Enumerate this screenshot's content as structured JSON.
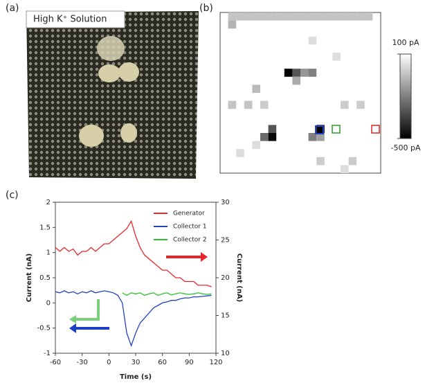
{
  "panels": [
    "(a)",
    "(b)",
    "(c)"
  ],
  "photo": {
    "label": "High K⁺ Solution"
  },
  "chart_data": [
    {
      "type": "heatmap",
      "cells": [
        [
          0,
          1,
          -40
        ],
        [
          0,
          2,
          -40
        ],
        [
          0,
          3,
          -40
        ],
        [
          0,
          4,
          -40
        ],
        [
          0,
          5,
          -40
        ],
        [
          0,
          6,
          -40
        ],
        [
          0,
          7,
          -40
        ],
        [
          0,
          8,
          -40
        ],
        [
          0,
          9,
          -40
        ],
        [
          0,
          10,
          -40
        ],
        [
          0,
          11,
          -40
        ],
        [
          0,
          12,
          -40
        ],
        [
          0,
          13,
          -40
        ],
        [
          0,
          14,
          -40
        ],
        [
          0,
          15,
          -40
        ],
        [
          0,
          16,
          -40
        ],
        [
          0,
          17,
          -40
        ],
        [
          0,
          18,
          -40
        ],
        [
          1,
          1,
          -80
        ],
        [
          7,
          8,
          -500
        ],
        [
          7,
          9,
          -300
        ],
        [
          7,
          10,
          -150
        ],
        [
          7,
          11,
          -200
        ],
        [
          8,
          9,
          -100
        ],
        [
          9,
          4,
          -60
        ],
        [
          11,
          1,
          -40
        ],
        [
          11,
          3,
          -40
        ],
        [
          11,
          5,
          -20
        ],
        [
          11,
          15,
          -20
        ],
        [
          11,
          17,
          -20
        ],
        [
          14,
          6,
          -300
        ],
        [
          15,
          6,
          -480
        ],
        [
          15,
          5,
          -250
        ],
        [
          14,
          12,
          -500
        ],
        [
          15,
          11,
          -200
        ],
        [
          15,
          12,
          -120
        ],
        [
          16,
          4,
          20
        ],
        [
          17,
          2,
          20
        ],
        [
          18,
          12,
          -20
        ],
        [
          18,
          16,
          -20
        ],
        [
          19,
          15,
          20
        ],
        [
          3,
          11,
          20
        ],
        [
          5,
          14,
          20
        ]
      ],
      "zlim": [
        -500,
        100
      ],
      "zticks": [
        {
          "value": 100,
          "label": "100 pA"
        },
        {
          "value": -500,
          "label": "-500 pA"
        }
      ]
    },
    {
      "type": "line",
      "x": [
        -60,
        -55,
        -50,
        -45,
        -40,
        -35,
        -30,
        -25,
        -20,
        -15,
        -10,
        -5,
        0,
        5,
        10,
        15,
        20,
        25,
        30,
        35,
        40,
        45,
        50,
        55,
        60,
        65,
        70,
        75,
        80,
        85,
        90,
        95,
        100,
        105,
        110,
        115
      ],
      "series": [
        {
          "name": "Generator",
          "color": "#e8262a",
          "axis": "y2",
          "values": [
            24,
            23.5,
            24,
            23.5,
            23.8,
            23,
            23.5,
            23.5,
            24,
            23.5,
            24,
            24.5,
            24.5,
            25,
            25.5,
            26,
            26.5,
            27.5,
            25.5,
            24,
            23,
            22.5,
            22,
            21.5,
            21,
            21,
            20.5,
            20,
            20,
            19.5,
            19.5,
            19.5,
            19,
            19,
            19,
            18.8
          ]
        },
        {
          "name": "Collector 1",
          "color": "#1f3fc4",
          "values": [
            0.22,
            0.2,
            0.24,
            0.2,
            0.22,
            0.18,
            0.22,
            0.2,
            0.24,
            0.2,
            0.22,
            0.24,
            0.22,
            0.2,
            0.15,
            0,
            -0.6,
            -0.85,
            -0.6,
            -0.4,
            -0.3,
            -0.2,
            -0.1,
            -0.05,
            0,
            0.02,
            0.05,
            0.05,
            0.08,
            0.1,
            0.1,
            0.12,
            0.12,
            0.13,
            0.14,
            0.15
          ]
        },
        {
          "name": "Collector 2",
          "color": "#2cc02c",
          "values": [
            null,
            null,
            null,
            null,
            null,
            null,
            null,
            null,
            null,
            null,
            null,
            null,
            null,
            null,
            null,
            0.2,
            0.15,
            0.2,
            0.18,
            0.2,
            0.15,
            0.18,
            0.2,
            0.15,
            0.18,
            0.2,
            0.16,
            0.18,
            0.2,
            0.18,
            0.17,
            0.18,
            0.2,
            0.18,
            0.17,
            0.18
          ]
        }
      ],
      "xlabel": "Time (s)",
      "ylabel": "Current (nA)",
      "y2label": "Current (nA)",
      "xlim": [
        -60,
        120
      ],
      "xticks": [
        -60,
        -30,
        0,
        30,
        60,
        90,
        120
      ],
      "ylim": [
        -1,
        2
      ],
      "yticks": [
        -1,
        -0.5,
        0,
        0.5,
        1,
        1.5,
        2
      ],
      "y2lim": [
        10,
        30
      ],
      "y2ticks": [
        10,
        15,
        20,
        25,
        30
      ]
    }
  ]
}
